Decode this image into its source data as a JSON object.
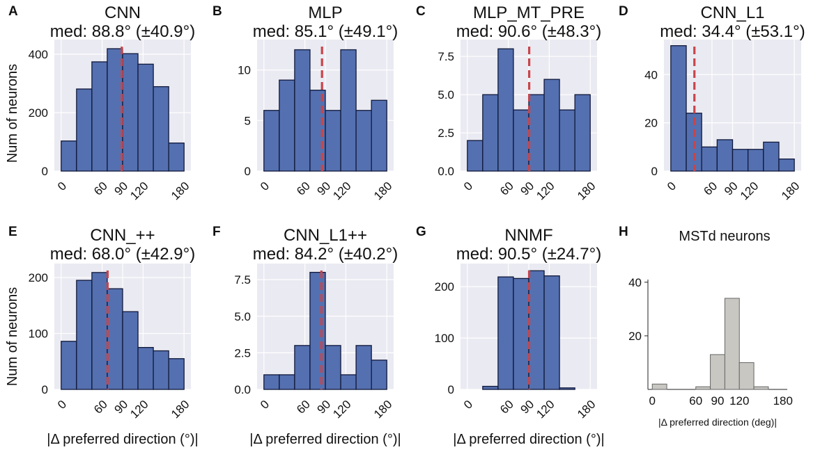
{
  "figure": {
    "shared_xlabel": "|Δ preferred direction (°)|",
    "shared_ylabel": "Num of neurons"
  },
  "chart_data": [
    {
      "type": "bar",
      "letter": "A",
      "name": "CNN",
      "subtitle": "med: 88.8° (±40.9°)",
      "bin_edges": [
        0,
        22.5,
        45,
        67.5,
        90,
        112.5,
        135,
        157.5,
        180
      ],
      "values": [
        103,
        281,
        374,
        419,
        402,
        366,
        289,
        96
      ],
      "median": 88.8,
      "xlim": [
        -10,
        190
      ],
      "ylim": [
        0,
        450
      ],
      "xticks": [
        0,
        60,
        90,
        120,
        180
      ],
      "yticks": [
        0,
        200,
        400
      ],
      "ytick_labels": [
        "0",
        "200",
        "400"
      ],
      "show_ylabel": true,
      "show_xlabel": false,
      "style": "seaborn"
    },
    {
      "type": "bar",
      "letter": "B",
      "name": "MLP",
      "subtitle": "med: 85.1° (±49.1°)",
      "bin_edges": [
        0,
        22.5,
        45,
        67.5,
        90,
        112.5,
        135,
        157.5,
        180
      ],
      "values": [
        6,
        9,
        12,
        8,
        6,
        12,
        6,
        7
      ],
      "median": 85.1,
      "xlim": [
        -10,
        190
      ],
      "ylim": [
        0,
        13
      ],
      "xticks": [
        0,
        60,
        90,
        120,
        180
      ],
      "yticks": [
        0,
        5,
        10
      ],
      "ytick_labels": [
        "0",
        "5",
        "10"
      ],
      "show_ylabel": false,
      "show_xlabel": false,
      "style": "seaborn"
    },
    {
      "type": "bar",
      "letter": "C",
      "name": "MLP_MT_PRE",
      "subtitle": "med: 90.6° (±48.3°)",
      "bin_edges": [
        0,
        22.5,
        45,
        67.5,
        90,
        112.5,
        135,
        157.5,
        180
      ],
      "values": [
        2,
        5,
        8,
        4,
        5,
        6,
        4,
        5
      ],
      "median": 90.6,
      "xlim": [
        -10,
        190
      ],
      "ylim": [
        0,
        8.6
      ],
      "xticks": [
        0,
        60,
        90,
        120,
        180
      ],
      "yticks": [
        0,
        2.5,
        5,
        7.5
      ],
      "ytick_labels": [
        "0.0",
        "2.5",
        "5.0",
        "7.5"
      ],
      "show_ylabel": false,
      "show_xlabel": false,
      "style": "seaborn"
    },
    {
      "type": "bar",
      "letter": "D",
      "name": "CNN_L1",
      "subtitle": "med: 34.4° (±53.1°)",
      "bin_edges": [
        0,
        22.5,
        45,
        67.5,
        90,
        112.5,
        135,
        157.5,
        180
      ],
      "values": [
        52,
        24,
        10,
        13,
        9,
        9,
        12,
        5
      ],
      "median": 34.4,
      "xlim": [
        -10,
        190
      ],
      "ylim": [
        0,
        54.5
      ],
      "xticks": [
        0,
        60,
        90,
        120,
        180
      ],
      "yticks": [
        0,
        20,
        40
      ],
      "ytick_labels": [
        "0",
        "20",
        "40"
      ],
      "show_ylabel": false,
      "show_xlabel": false,
      "style": "seaborn"
    },
    {
      "type": "bar",
      "letter": "E",
      "name": "CNN_++",
      "subtitle": "med: 68.0° (±42.9°)",
      "bin_edges": [
        0,
        22.5,
        45,
        67.5,
        90,
        112.5,
        135,
        157.5,
        180
      ],
      "values": [
        86,
        195,
        209,
        180,
        139,
        75,
        69,
        55
      ],
      "median": 68.0,
      "xlim": [
        -10,
        190
      ],
      "ylim": [
        0,
        225
      ],
      "xticks": [
        0,
        60,
        90,
        120,
        180
      ],
      "yticks": [
        0,
        100,
        200
      ],
      "ytick_labels": [
        "0",
        "100",
        "200"
      ],
      "show_ylabel": true,
      "show_xlabel": true,
      "style": "seaborn"
    },
    {
      "type": "bar",
      "letter": "F",
      "name": "CNN_L1++",
      "subtitle": "med: 84.2° (±40.2°)",
      "bin_edges": [
        0,
        22.5,
        45,
        67.5,
        90,
        112.5,
        135,
        157.5,
        180
      ],
      "values": [
        1,
        1,
        3,
        8,
        3,
        1,
        3,
        2
      ],
      "median": 84.2,
      "xlim": [
        -10,
        190
      ],
      "ylim": [
        0,
        8.6
      ],
      "xticks": [
        0,
        60,
        90,
        120,
        180
      ],
      "yticks": [
        0,
        2.5,
        5,
        7.5
      ],
      "ytick_labels": [
        "0.0",
        "2.5",
        "5.0",
        "7.5"
      ],
      "show_ylabel": false,
      "show_xlabel": true,
      "style": "seaborn"
    },
    {
      "type": "bar",
      "letter": "G",
      "name": "NNMF",
      "subtitle": "med: 90.5° (±24.7°)",
      "bin_edges": [
        0,
        22.5,
        45,
        67.5,
        90,
        112.5,
        135,
        157.5,
        180
      ],
      "values": [
        0,
        6,
        219,
        216,
        231,
        221,
        3,
        0
      ],
      "median": 90.5,
      "xlim": [
        -10,
        190
      ],
      "ylim": [
        0,
        245
      ],
      "xticks": [
        0,
        60,
        90,
        120,
        180
      ],
      "yticks": [
        0,
        100,
        200
      ],
      "ytick_labels": [
        "0",
        "100",
        "200"
      ],
      "show_ylabel": false,
      "show_xlabel": true,
      "style": "seaborn"
    },
    {
      "type": "bar",
      "letter": "H",
      "name": "MSTd neurons",
      "subtitle": "",
      "bin_edges": [
        0,
        20,
        40,
        60,
        80,
        100,
        120,
        140,
        160,
        180
      ],
      "values": [
        2,
        0,
        0,
        1,
        13,
        34,
        10,
        1,
        0
      ],
      "median": null,
      "xlim": [
        -6,
        186
      ],
      "ylim": [
        0,
        41
      ],
      "xticks": [
        0,
        60,
        90,
        120,
        180
      ],
      "yticks": [
        20,
        40
      ],
      "ytick_labels": [
        "20",
        "40"
      ],
      "xlabel": "|Δ preferred direction (deg)|",
      "show_ylabel": false,
      "show_xlabel": true,
      "style": "plain"
    }
  ]
}
